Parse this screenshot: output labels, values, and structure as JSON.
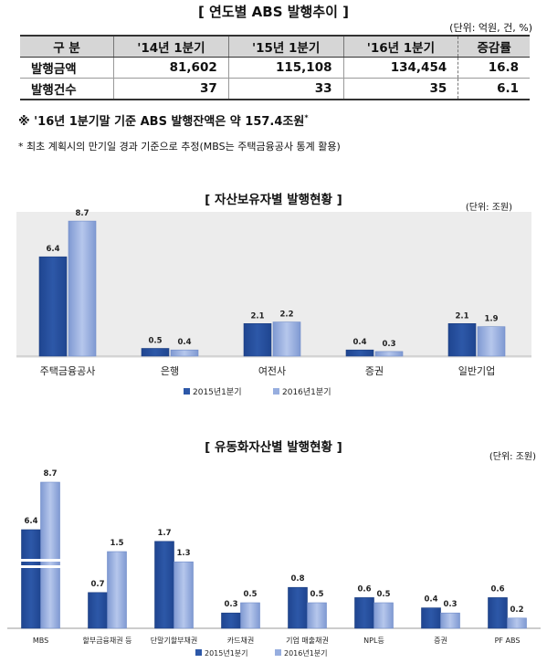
{
  "section1": {
    "title": "[ 연도별 ABS 발행추이 ]",
    "unit": "(단위: 억원, 건, %)",
    "headers": [
      "구  분",
      "'14년 1분기",
      "'15년 1분기",
      "'16년 1분기",
      "증감률"
    ],
    "rows": [
      [
        "발행금액",
        "81,602",
        "115,108",
        "134,454",
        "16.8"
      ],
      [
        "발행건수",
        "37",
        "33",
        "35",
        "6.1"
      ]
    ],
    "note_main": "※ '16년 1분기말 기준 ABS 발행잔액은 약 157.4조원",
    "note_mark": "*",
    "note_sub": "* 최초 계획시의 만기일 경과 기준으로 추정(MBS는 주택금융공사 통계 활용)"
  },
  "colors": {
    "s2015": "#2d58a8",
    "s2016": "#97aedf"
  },
  "chart_data": [
    {
      "type": "bar",
      "title": "[ 자산보유자별 발행현황 ]",
      "unit": "(단위: 조원)",
      "categories": [
        "주택금융공사",
        "은행",
        "여전사",
        "증권",
        "일반기업"
      ],
      "series": [
        {
          "name": "2015년1분기",
          "values": [
            6.4,
            0.5,
            2.1,
            0.4,
            2.1
          ]
        },
        {
          "name": "2016년1분기",
          "values": [
            8.7,
            0.4,
            2.2,
            0.3,
            1.9
          ]
        }
      ],
      "ylim": [
        0,
        9.5
      ],
      "legend": "bottom"
    },
    {
      "type": "bar",
      "title": "[ 유동화자산별 발행현황 ]",
      "unit": "(단위: 조원)",
      "categories": [
        "MBS",
        "할부금융채권 등",
        "단말기할부채권",
        "카드채권",
        "기업 매출채권",
        "NPL등",
        "증권",
        "PF ABS"
      ],
      "series": [
        {
          "name": "2015년1분기",
          "values": [
            6.4,
            0.7,
            1.7,
            0.3,
            0.8,
            0.6,
            0.4,
            0.6
          ]
        },
        {
          "name": "2016년1분기",
          "values": [
            8.7,
            1.5,
            1.3,
            0.5,
            0.5,
            0.5,
            0.3,
            0.2
          ]
        }
      ],
      "broken_axis": true,
      "legend": "bottom"
    }
  ]
}
